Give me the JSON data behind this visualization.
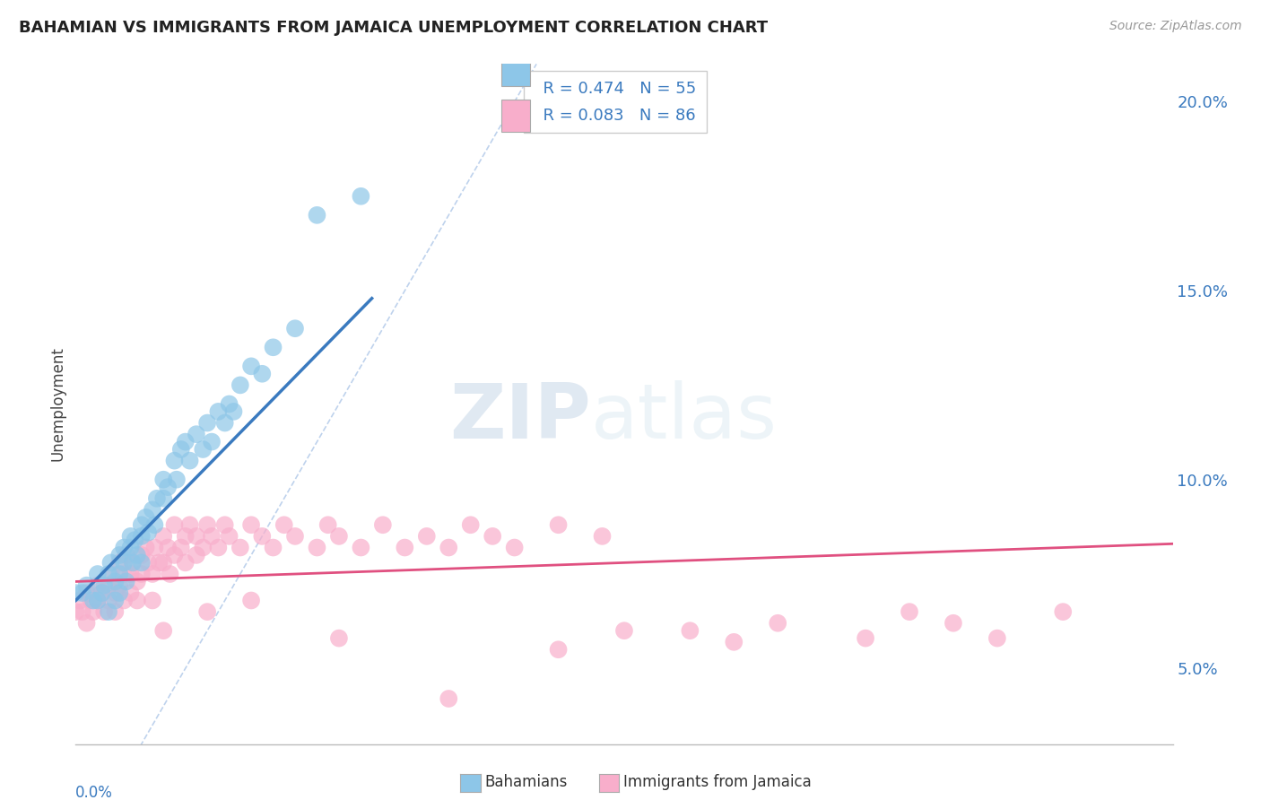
{
  "title": "BAHAMIAN VS IMMIGRANTS FROM JAMAICA UNEMPLOYMENT CORRELATION CHART",
  "source_text": "Source: ZipAtlas.com",
  "ylabel": "Unemployment",
  "xmin": 0.0,
  "xmax": 0.5,
  "ymin": 0.03,
  "ymax": 0.21,
  "yticks": [
    0.05,
    0.1,
    0.15,
    0.2
  ],
  "ytick_labels": [
    "5.0%",
    "10.0%",
    "15.0%",
    "20.0%"
  ],
  "color_blue": "#8dc6e8",
  "color_blue_line": "#3a7abf",
  "color_pink": "#f8aecb",
  "color_pink_line": "#e05080",
  "color_diag": "#aec7e8",
  "R_blue": 0.474,
  "N_blue": 55,
  "R_pink": 0.083,
  "N_pink": 86,
  "legend_label_blue": "Bahamians",
  "legend_label_pink": "Immigrants from Jamaica",
  "watermark_zip": "ZIP",
  "watermark_atlas": "atlas",
  "background_color": "#ffffff",
  "grid_color": "#cccccc",
  "blue_scatter_x": [
    0.0,
    0.003,
    0.005,
    0.008,
    0.01,
    0.01,
    0.012,
    0.013,
    0.015,
    0.015,
    0.016,
    0.018,
    0.018,
    0.02,
    0.02,
    0.02,
    0.022,
    0.022,
    0.023,
    0.025,
    0.025,
    0.026,
    0.027,
    0.028,
    0.03,
    0.03,
    0.03,
    0.032,
    0.033,
    0.035,
    0.036,
    0.037,
    0.04,
    0.04,
    0.042,
    0.045,
    0.046,
    0.048,
    0.05,
    0.052,
    0.055,
    0.058,
    0.06,
    0.062,
    0.065,
    0.068,
    0.07,
    0.072,
    0.075,
    0.08,
    0.085,
    0.09,
    0.1,
    0.11,
    0.13
  ],
  "blue_scatter_y": [
    0.07,
    0.07,
    0.072,
    0.068,
    0.075,
    0.068,
    0.07,
    0.072,
    0.075,
    0.065,
    0.078,
    0.073,
    0.068,
    0.08,
    0.075,
    0.07,
    0.082,
    0.078,
    0.073,
    0.085,
    0.082,
    0.078,
    0.084,
    0.08,
    0.088,
    0.085,
    0.078,
    0.09,
    0.086,
    0.092,
    0.088,
    0.095,
    0.095,
    0.1,
    0.098,
    0.105,
    0.1,
    0.108,
    0.11,
    0.105,
    0.112,
    0.108,
    0.115,
    0.11,
    0.118,
    0.115,
    0.12,
    0.118,
    0.125,
    0.13,
    0.128,
    0.135,
    0.14,
    0.17,
    0.175
  ],
  "pink_scatter_x": [
    0.0,
    0.002,
    0.003,
    0.005,
    0.005,
    0.007,
    0.008,
    0.01,
    0.01,
    0.012,
    0.013,
    0.015,
    0.015,
    0.016,
    0.018,
    0.018,
    0.02,
    0.02,
    0.022,
    0.022,
    0.023,
    0.025,
    0.025,
    0.026,
    0.028,
    0.028,
    0.03,
    0.03,
    0.032,
    0.033,
    0.035,
    0.035,
    0.036,
    0.038,
    0.04,
    0.04,
    0.042,
    0.043,
    0.045,
    0.045,
    0.048,
    0.05,
    0.05,
    0.052,
    0.055,
    0.055,
    0.058,
    0.06,
    0.062,
    0.065,
    0.068,
    0.07,
    0.075,
    0.08,
    0.085,
    0.09,
    0.095,
    0.1,
    0.11,
    0.115,
    0.12,
    0.13,
    0.14,
    0.15,
    0.16,
    0.17,
    0.18,
    0.19,
    0.2,
    0.22,
    0.24,
    0.25,
    0.28,
    0.3,
    0.32,
    0.36,
    0.38,
    0.4,
    0.42,
    0.45,
    0.22,
    0.17,
    0.12,
    0.08,
    0.06,
    0.04
  ],
  "pink_scatter_y": [
    0.065,
    0.068,
    0.065,
    0.07,
    0.062,
    0.068,
    0.065,
    0.072,
    0.068,
    0.07,
    0.065,
    0.072,
    0.068,
    0.075,
    0.07,
    0.065,
    0.078,
    0.072,
    0.075,
    0.068,
    0.08,
    0.075,
    0.07,
    0.078,
    0.073,
    0.068,
    0.08,
    0.075,
    0.082,
    0.078,
    0.075,
    0.068,
    0.082,
    0.078,
    0.085,
    0.078,
    0.082,
    0.075,
    0.088,
    0.08,
    0.082,
    0.085,
    0.078,
    0.088,
    0.085,
    0.08,
    0.082,
    0.088,
    0.085,
    0.082,
    0.088,
    0.085,
    0.082,
    0.088,
    0.085,
    0.082,
    0.088,
    0.085,
    0.082,
    0.088,
    0.085,
    0.082,
    0.088,
    0.082,
    0.085,
    0.082,
    0.088,
    0.085,
    0.082,
    0.088,
    0.085,
    0.06,
    0.06,
    0.057,
    0.062,
    0.058,
    0.065,
    0.062,
    0.058,
    0.065,
    0.055,
    0.042,
    0.058,
    0.068,
    0.065,
    0.06
  ]
}
